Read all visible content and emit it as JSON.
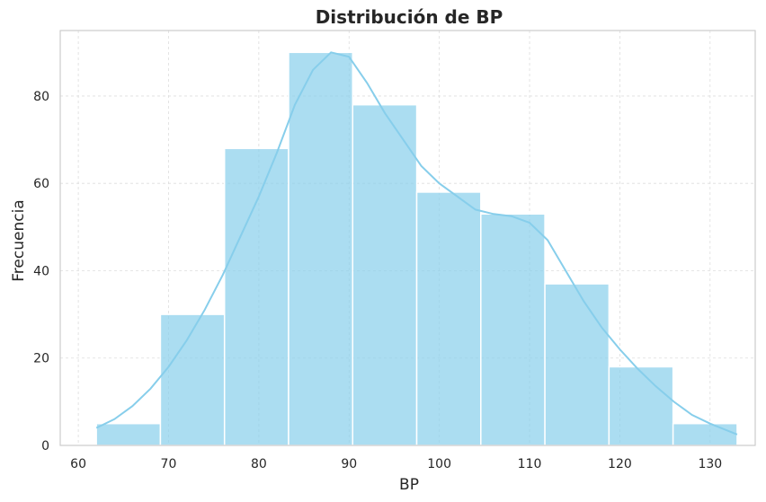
{
  "chart_data": {
    "type": "bar",
    "subtype": "histogram",
    "title": "Distribución de BP",
    "xlabel": "BP",
    "ylabel": "Frecuencia",
    "xlim": [
      58,
      135
    ],
    "ylim": [
      0,
      95
    ],
    "xticks": [
      60,
      70,
      80,
      90,
      100,
      110,
      120,
      130
    ],
    "yticks": [
      0,
      20,
      40,
      60,
      80
    ],
    "grid": true,
    "bins": [
      {
        "start": 62,
        "end": 69.1,
        "count": 5
      },
      {
        "start": 69.1,
        "end": 76.2,
        "count": 30
      },
      {
        "start": 76.2,
        "end": 83.3,
        "count": 68
      },
      {
        "start": 83.3,
        "end": 90.4,
        "count": 90
      },
      {
        "start": 90.4,
        "end": 97.5,
        "count": 78
      },
      {
        "start": 97.5,
        "end": 104.6,
        "count": 58
      },
      {
        "start": 104.6,
        "end": 111.7,
        "count": 53
      },
      {
        "start": 111.7,
        "end": 118.8,
        "count": 37
      },
      {
        "start": 118.8,
        "end": 125.9,
        "count": 18
      },
      {
        "start": 125.9,
        "end": 133,
        "count": 5
      }
    ],
    "kde": {
      "x": [
        62,
        64,
        66,
        68,
        70,
        72,
        74,
        76,
        78,
        80,
        82,
        84,
        86,
        88,
        90,
        92,
        94,
        96,
        98,
        100,
        102,
        104,
        106,
        108,
        110,
        112,
        114,
        116,
        118,
        120,
        122,
        124,
        126,
        128,
        130,
        133
      ],
      "y": [
        4,
        6,
        9,
        13,
        18,
        24,
        31,
        39,
        48,
        57,
        67,
        78,
        86,
        90,
        89,
        83,
        76,
        70,
        64,
        60,
        57,
        54,
        53,
        52.5,
        51,
        47,
        40,
        33,
        27,
        22,
        17.5,
        13.5,
        10,
        7,
        5,
        2.5
      ]
    },
    "colors": {
      "bar": "#87ceeb",
      "line": "#87ceeb",
      "grid": "#dddddd",
      "frame": "#cccccc",
      "text": "#262626"
    }
  }
}
